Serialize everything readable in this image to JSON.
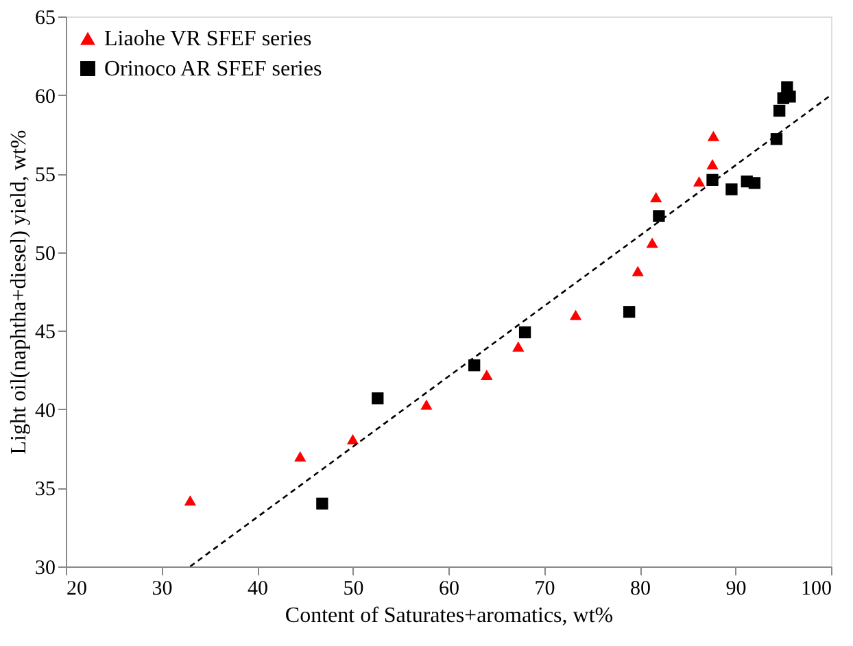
{
  "chart_data": {
    "type": "scatter",
    "xlabel": "Content of Saturates+aromatics, wt%",
    "ylabel": "Light oil(naphtha+diesel) yield, wt%",
    "xlim": [
      20,
      100
    ],
    "xticks": [
      20,
      30,
      40,
      50,
      60,
      70,
      80,
      90,
      100
    ],
    "ylim": [
      30,
      65
    ],
    "yticks": [
      30,
      35,
      40,
      45,
      50,
      55,
      60,
      65
    ],
    "grid": false,
    "legend": "top left",
    "series": [
      {
        "name": "Liaohe VR SFEF series",
        "color": "#ff0000",
        "marker": "triangle",
        "x": [
          33,
          44.5,
          50,
          57.7,
          64,
          67.3,
          73.3,
          79.8,
          81.3,
          81.7,
          86.2,
          87.6,
          87.7
        ],
        "values": [
          34.2,
          37,
          38.1,
          40.3,
          42.2,
          44,
          46,
          48.8,
          50.6,
          53.5,
          54.5,
          55.6,
          57.4
        ]
      },
      {
        "name": "Orinoco AR SFEF series",
        "color": "#000000",
        "marker": "square",
        "x": [
          46.8,
          52.6,
          62.7,
          68,
          78.9,
          82,
          87.6,
          89.6,
          91.2,
          92,
          94.3,
          94.6,
          95,
          95.4,
          95.7
        ],
        "values": [
          34,
          40.7,
          42.8,
          44.9,
          46.2,
          52.3,
          54.6,
          54,
          54.5,
          54.4,
          57.2,
          59,
          59.8,
          60.5,
          59.9
        ]
      },
      {
        "type": "line",
        "color": "#000000",
        "line_style": "dashed",
        "x": [
          33,
          100
        ],
        "values": [
          30,
          60
        ]
      }
    ]
  }
}
